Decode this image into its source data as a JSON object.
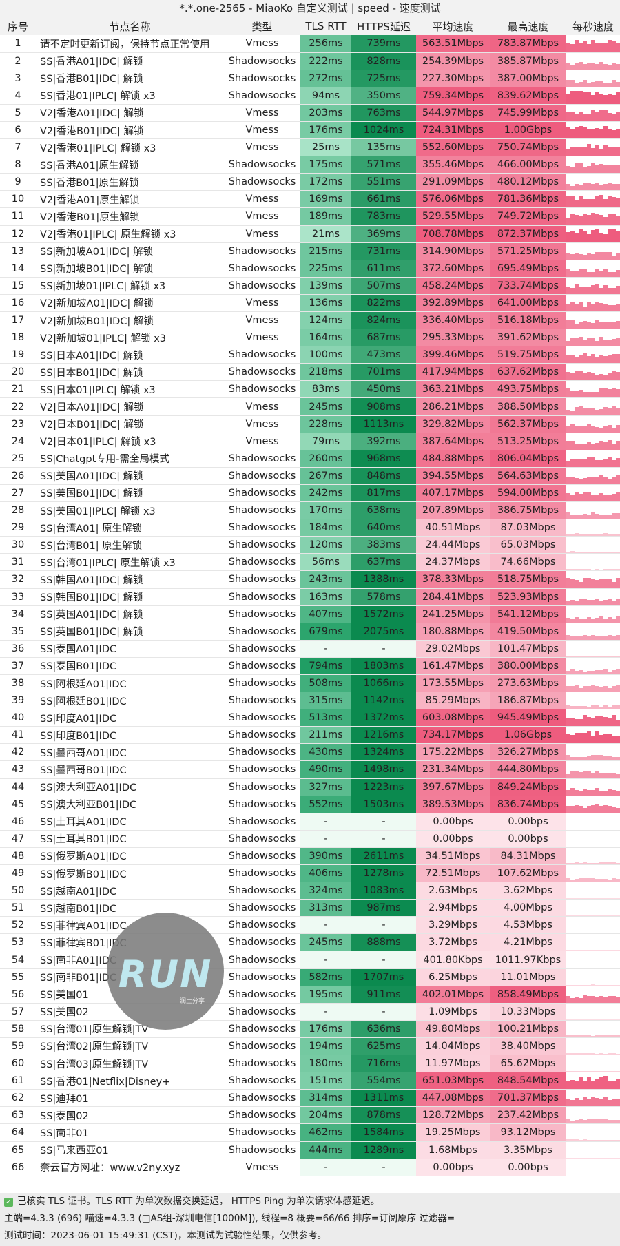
{
  "title": "*.*.one-2565 - MiaoKo 自定义测试 | speed - 速度测试",
  "headers": [
    "序号",
    "节点名称",
    "类型",
    "TLS RTT",
    "HTTPS延迟",
    "平均速度",
    "最高速度",
    "每秒速度"
  ],
  "rows": [
    [
      "1",
      "请不定时更新订阅，保持节点正常使用",
      "Vmess",
      "256ms",
      "739ms",
      "563.51Mbps",
      "783.87Mbps"
    ],
    [
      "2",
      "SS|香港A01|IDC| 解锁",
      "Shadowsocks",
      "222ms",
      "828ms",
      "254.39Mbps",
      "385.87Mbps"
    ],
    [
      "3",
      "SS|香港B01|IDC| 解锁",
      "Shadowsocks",
      "272ms",
      "725ms",
      "227.30Mbps",
      "387.00Mbps"
    ],
    [
      "4",
      "SS|香港01|IPLC| 解锁 x3",
      "Shadowsocks",
      "94ms",
      "350ms",
      "759.34Mbps",
      "839.62Mbps"
    ],
    [
      "5",
      "V2|香港A01|IDC| 解锁",
      "Vmess",
      "203ms",
      "763ms",
      "544.97Mbps",
      "745.99Mbps"
    ],
    [
      "6",
      "V2|香港B01|IDC| 解锁",
      "Vmess",
      "176ms",
      "1024ms",
      "724.31Mbps",
      "1.00Gbps"
    ],
    [
      "7",
      "V2|香港01|IPLC| 解锁 x3",
      "Vmess",
      "25ms",
      "135ms",
      "552.60Mbps",
      "750.74Mbps"
    ],
    [
      "8",
      "SS|香港A01|原生解锁",
      "Shadowsocks",
      "175ms",
      "571ms",
      "355.46Mbps",
      "466.00Mbps"
    ],
    [
      "9",
      "SS|香港B01|原生解锁",
      "Shadowsocks",
      "172ms",
      "551ms",
      "291.09Mbps",
      "480.12Mbps"
    ],
    [
      "10",
      "V2|香港A01|原生解锁",
      "Vmess",
      "169ms",
      "661ms",
      "576.06Mbps",
      "781.36Mbps"
    ],
    [
      "11",
      "V2|香港B01|原生解锁",
      "Vmess",
      "189ms",
      "783ms",
      "529.55Mbps",
      "749.72Mbps"
    ],
    [
      "12",
      "V2|香港01|IPLC| 原生解锁 x3",
      "Vmess",
      "21ms",
      "369ms",
      "708.78Mbps",
      "872.37Mbps"
    ],
    [
      "13",
      "SS|新加坡A01|IDC| 解锁",
      "Shadowsocks",
      "215ms",
      "731ms",
      "314.90Mbps",
      "571.25Mbps"
    ],
    [
      "14",
      "SS|新加坡B01|IDC| 解锁",
      "Shadowsocks",
      "225ms",
      "611ms",
      "372.60Mbps",
      "695.49Mbps"
    ],
    [
      "15",
      "SS|新加坡01|IPLC| 解锁 x3",
      "Shadowsocks",
      "139ms",
      "507ms",
      "458.24Mbps",
      "733.74Mbps"
    ],
    [
      "16",
      "V2|新加坡A01|IDC| 解锁",
      "Vmess",
      "136ms",
      "822ms",
      "392.89Mbps",
      "641.00Mbps"
    ],
    [
      "17",
      "V2|新加坡B01|IDC| 解锁",
      "Vmess",
      "124ms",
      "824ms",
      "336.40Mbps",
      "516.18Mbps"
    ],
    [
      "18",
      "V2|新加坡01|IPLC| 解锁 x3",
      "Vmess",
      "164ms",
      "687ms",
      "295.33Mbps",
      "391.62Mbps"
    ],
    [
      "19",
      "SS|日本A01|IDC| 解锁",
      "Shadowsocks",
      "100ms",
      "473ms",
      "399.46Mbps",
      "519.75Mbps"
    ],
    [
      "20",
      "SS|日本B01|IDC| 解锁",
      "Shadowsocks",
      "218ms",
      "701ms",
      "417.94Mbps",
      "637.62Mbps"
    ],
    [
      "21",
      "SS|日本01|IPLC| 解锁 x3",
      "Shadowsocks",
      "83ms",
      "450ms",
      "363.21Mbps",
      "493.75Mbps"
    ],
    [
      "22",
      "V2|日本A01|IDC| 解锁",
      "Vmess",
      "245ms",
      "908ms",
      "286.21Mbps",
      "388.50Mbps"
    ],
    [
      "23",
      "V2|日本B01|IDC| 解锁",
      "Vmess",
      "228ms",
      "1113ms",
      "329.82Mbps",
      "562.37Mbps"
    ],
    [
      "24",
      "V2|日本01|IPLC| 解锁 x3",
      "Vmess",
      "79ms",
      "392ms",
      "387.64Mbps",
      "513.25Mbps"
    ],
    [
      "25",
      "SS|Chatgpt专用-需全局模式",
      "Shadowsocks",
      "260ms",
      "968ms",
      "484.88Mbps",
      "806.04Mbps"
    ],
    [
      "26",
      "SS|美国A01|IDC| 解锁",
      "Shadowsocks",
      "267ms",
      "848ms",
      "394.55Mbps",
      "564.63Mbps"
    ],
    [
      "27",
      "SS|美国B01|IDC| 解锁",
      "Shadowsocks",
      "242ms",
      "817ms",
      "407.17Mbps",
      "594.00Mbps"
    ],
    [
      "28",
      "SS|美国01|IPLC| 解锁 x3",
      "Shadowsocks",
      "170ms",
      "638ms",
      "207.89Mbps",
      "386.75Mbps"
    ],
    [
      "29",
      "SS|台湾A01| 原生解锁",
      "Shadowsocks",
      "184ms",
      "640ms",
      "40.51Mbps",
      "87.03Mbps"
    ],
    [
      "30",
      "SS|台湾B01| 原生解锁",
      "Shadowsocks",
      "120ms",
      "383ms",
      "24.44Mbps",
      "65.03Mbps"
    ],
    [
      "31",
      "SS|台湾01|IPLC| 原生解锁 x3",
      "Shadowsocks",
      "56ms",
      "637ms",
      "24.37Mbps",
      "74.66Mbps"
    ],
    [
      "32",
      "SS|韩国A01|IDC| 解锁",
      "Shadowsocks",
      "243ms",
      "1388ms",
      "378.33Mbps",
      "518.75Mbps"
    ],
    [
      "33",
      "SS|韩国B01|IDC| 解锁",
      "Shadowsocks",
      "163ms",
      "578ms",
      "284.41Mbps",
      "523.93Mbps"
    ],
    [
      "34",
      "SS|英国A01|IDC| 解锁",
      "Shadowsocks",
      "407ms",
      "1572ms",
      "241.25Mbps",
      "541.12Mbps"
    ],
    [
      "35",
      "SS|英国B01|IDC| 解锁",
      "Shadowsocks",
      "679ms",
      "2075ms",
      "180.88Mbps",
      "419.50Mbps"
    ],
    [
      "36",
      "SS|泰国A01|IDC",
      "Shadowsocks",
      "-",
      "-",
      "29.02Mbps",
      "101.47Mbps"
    ],
    [
      "37",
      "SS|泰国B01|IDC",
      "Shadowsocks",
      "794ms",
      "1803ms",
      "161.47Mbps",
      "380.00Mbps"
    ],
    [
      "38",
      "SS|阿根廷A01|IDC",
      "Shadowsocks",
      "508ms",
      "1066ms",
      "173.55Mbps",
      "273.63Mbps"
    ],
    [
      "39",
      "SS|阿根廷B01|IDC",
      "Shadowsocks",
      "315ms",
      "1142ms",
      "85.29Mbps",
      "186.87Mbps"
    ],
    [
      "40",
      "SS|印度A01|IDC",
      "Shadowsocks",
      "513ms",
      "1372ms",
      "603.08Mbps",
      "945.49Mbps"
    ],
    [
      "41",
      "SS|印度B01|IDC",
      "Shadowsocks",
      "211ms",
      "1216ms",
      "734.17Mbps",
      "1.06Gbps"
    ],
    [
      "42",
      "SS|墨西哥A01|IDC",
      "Shadowsocks",
      "430ms",
      "1324ms",
      "175.22Mbps",
      "326.27Mbps"
    ],
    [
      "43",
      "SS|墨西哥B01|IDC",
      "Shadowsocks",
      "490ms",
      "1498ms",
      "231.34Mbps",
      "444.80Mbps"
    ],
    [
      "44",
      "SS|澳大利亚A01|IDC",
      "Shadowsocks",
      "327ms",
      "1223ms",
      "397.67Mbps",
      "849.24Mbps"
    ],
    [
      "45",
      "SS|澳大利亚B01|IDC",
      "Shadowsocks",
      "552ms",
      "1503ms",
      "389.53Mbps",
      "836.74Mbps"
    ],
    [
      "46",
      "SS|土耳其A01|IDC",
      "Shadowsocks",
      "-",
      "-",
      "0.00bps",
      "0.00bps"
    ],
    [
      "47",
      "SS|土耳其B01|IDC",
      "Shadowsocks",
      "-",
      "-",
      "0.00bps",
      "0.00bps"
    ],
    [
      "48",
      "SS|俄罗斯A01|IDC",
      "Shadowsocks",
      "390ms",
      "2611ms",
      "34.51Mbps",
      "84.31Mbps"
    ],
    [
      "49",
      "SS|俄罗斯B01|IDC",
      "Shadowsocks",
      "406ms",
      "1278ms",
      "72.51Mbps",
      "107.62Mbps"
    ],
    [
      "50",
      "SS|越南A01|IDC",
      "Shadowsocks",
      "324ms",
      "1083ms",
      "2.63Mbps",
      "3.62Mbps"
    ],
    [
      "51",
      "SS|越南B01|IDC",
      "Shadowsocks",
      "313ms",
      "987ms",
      "2.94Mbps",
      "4.00Mbps"
    ],
    [
      "52",
      "SS|菲律宾A01|IDC",
      "Shadowsocks",
      "-",
      "-",
      "3.29Mbps",
      "4.53Mbps"
    ],
    [
      "53",
      "SS|菲律宾B01|IDC",
      "Shadowsocks",
      "245ms",
      "888ms",
      "3.72Mbps",
      "4.21Mbps"
    ],
    [
      "54",
      "SS|南非A01|IDC",
      "Shadowsocks",
      "-",
      "-",
      "401.80Kbps",
      "1011.97Kbps"
    ],
    [
      "55",
      "SS|南非B01|IDC",
      "Shadowsocks",
      "582ms",
      "1707ms",
      "6.25Mbps",
      "11.01Mbps"
    ],
    [
      "56",
      "SS|美国01",
      "Shadowsocks",
      "195ms",
      "911ms",
      "402.01Mbps",
      "858.49Mbps"
    ],
    [
      "57",
      "SS|美国02",
      "Shadowsocks",
      "-",
      "-",
      "1.09Mbps",
      "10.33Mbps"
    ],
    [
      "58",
      "SS|台湾01|原生解锁|TV",
      "Shadowsocks",
      "176ms",
      "636ms",
      "49.80Mbps",
      "100.21Mbps"
    ],
    [
      "59",
      "SS|台湾02|原生解锁|TV",
      "Shadowsocks",
      "194ms",
      "625ms",
      "14.04Mbps",
      "38.40Mbps"
    ],
    [
      "60",
      "SS|台湾03|原生解锁|TV",
      "Shadowsocks",
      "180ms",
      "716ms",
      "11.97Mbps",
      "65.62Mbps"
    ],
    [
      "61",
      "SS|香港01|Netflix|Disney+",
      "Shadowsocks",
      "151ms",
      "554ms",
      "651.03Mbps",
      "848.54Mbps"
    ],
    [
      "62",
      "SS|迪拜01",
      "Shadowsocks",
      "314ms",
      "1311ms",
      "447.08Mbps",
      "701.37Mbps"
    ],
    [
      "63",
      "SS|泰国02",
      "Shadowsocks",
      "204ms",
      "878ms",
      "128.72Mbps",
      "237.42Mbps"
    ],
    [
      "64",
      "SS|南非01",
      "Shadowsocks",
      "462ms",
      "1584ms",
      "19.25Mbps",
      "93.12Mbps"
    ],
    [
      "65",
      "SS|马来西亚01",
      "Shadowsocks",
      "444ms",
      "1289ms",
      "1.68Mbps",
      "3.35Mbps"
    ],
    [
      "66",
      "奈云官方网址：www.v2ny.xyz",
      "Vmess",
      "-",
      "-",
      "0.00bps",
      "0.00bps"
    ]
  ],
  "footer": {
    "line1": "已核实 TLS 证书。TLS RTT 为单次数据交换延迟， HTTPS Ping 为单次请求体感延迟。",
    "line2": "主端=4.3.3 (696) 喵速=4.3.3 (□AS组-深圳电信[1000M]), 线程=8 概要=66/66 排序=订阅原序 过滤器=",
    "line3": "测试时间：2023-06-01 15:49:31 (CST)，本测试为试验性结果，仅供参考。"
  },
  "logo": {
    "text": "RUN",
    "sub": "润土分享"
  },
  "colors": {
    "tls_light": "#c6f2dc",
    "tls_dark": "#1f9e64",
    "https_light": "#b5ecd0",
    "https_dark": "#0b8a4f",
    "speed_light": "#fde3e9",
    "speed_dark": "#ee5c7e"
  }
}
